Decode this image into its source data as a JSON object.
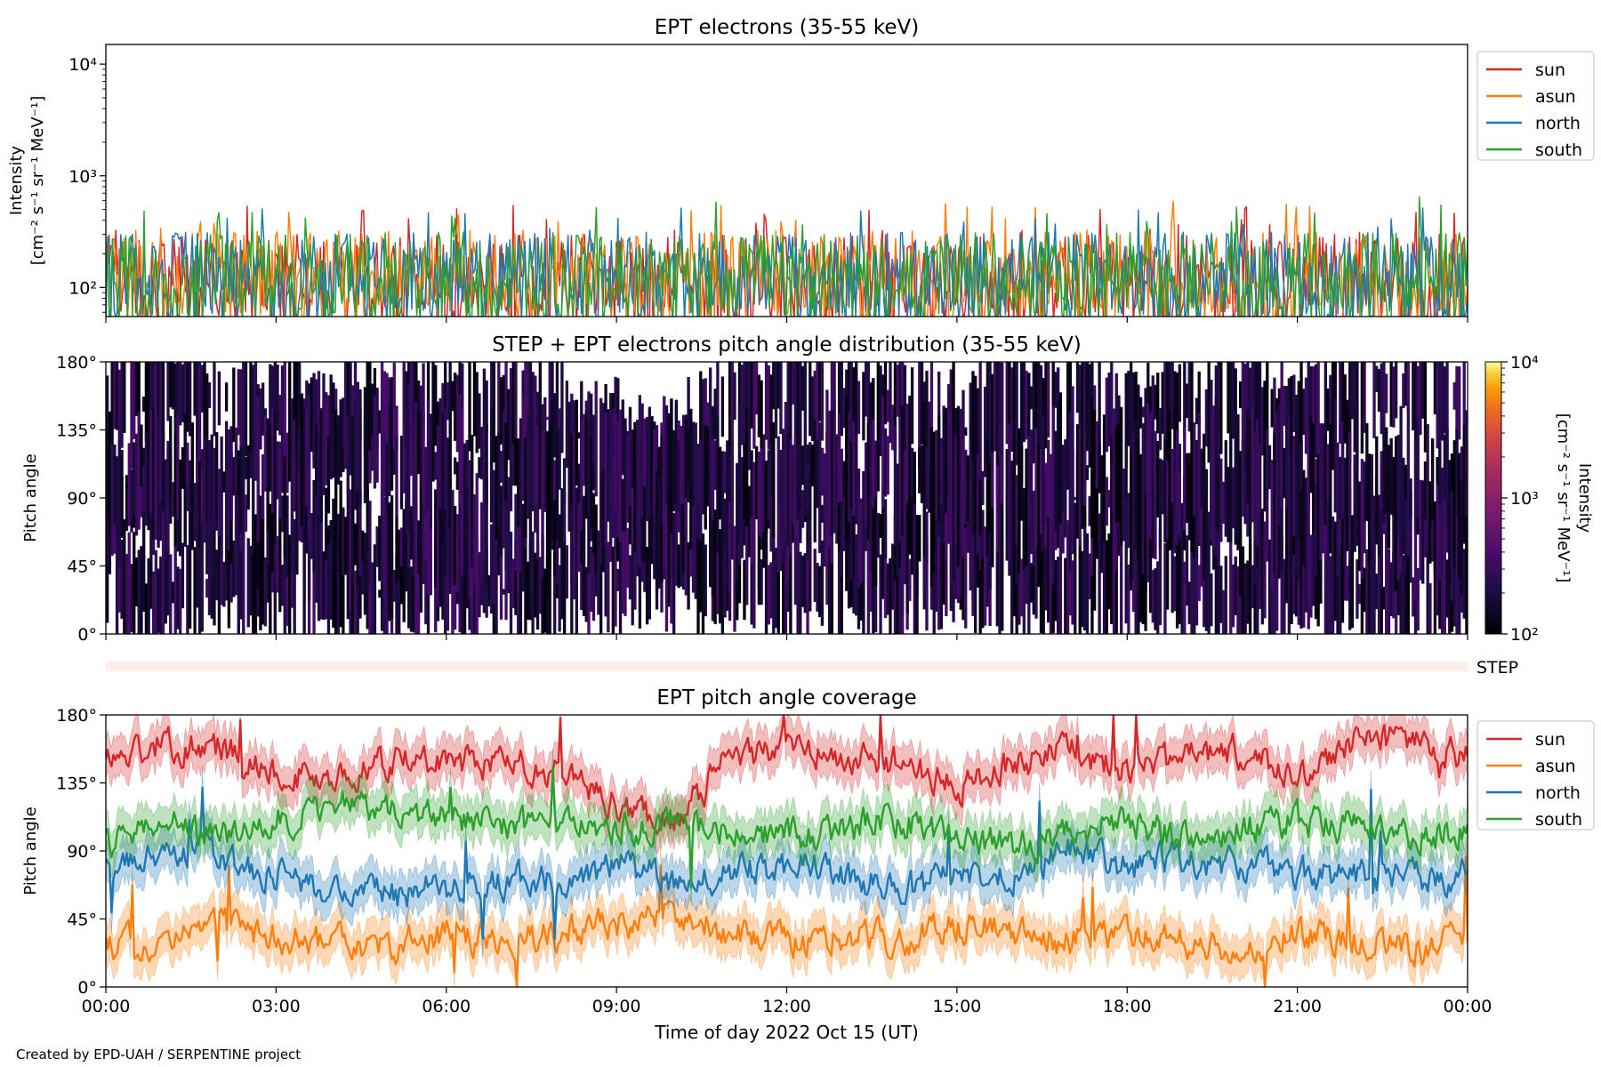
{
  "credit": "Created by EPD-UAH / SERPENTINE project",
  "colors": {
    "sun": "#d62728",
    "asun": "#ff7f0e",
    "north": "#1f77b4",
    "south": "#2ca02c",
    "step_band": "#fdeee8"
  },
  "chart_data": [
    {
      "type": "line",
      "title": "EPT electrons (35-55 keV)",
      "ylabel": [
        "Intensity",
        "[cm⁻² s⁻¹ sr⁻¹ MeV⁻¹]"
      ],
      "yscale": "log",
      "ylim": [
        55,
        15000
      ],
      "ytick_labels": [
        "10²",
        "10³",
        "10⁴"
      ],
      "ytick_values": [
        100,
        1000,
        10000
      ],
      "xlim_hours": [
        0,
        24
      ],
      "legend": {
        "placement": "outside-right-top",
        "entries": [
          "sun",
          "asun",
          "north",
          "south"
        ]
      },
      "series": [
        {
          "name": "sun",
          "typical": 110,
          "peak": 560
        },
        {
          "name": "asun",
          "typical": 120,
          "peak": 600
        },
        {
          "name": "north",
          "typical": 115,
          "peak": 520
        },
        {
          "name": "south",
          "typical": 115,
          "peak": 650
        }
      ]
    },
    {
      "type": "heatmap",
      "title": "STEP + EPT electrons pitch angle distribution (35-55 keV)",
      "ylabel": "Pitch angle",
      "ylim": [
        0,
        180
      ],
      "ytick_labels": [
        "0°",
        "45°",
        "90°",
        "135°",
        "180°"
      ],
      "ytick_values": [
        0,
        45,
        90,
        135,
        180
      ],
      "xlim_hours": [
        0,
        24
      ],
      "colorbar": {
        "label": [
          "Intensity",
          "[cm⁻² s⁻¹ sr⁻¹ MeV⁻¹]"
        ],
        "scale": "log",
        "range": [
          100,
          10000
        ],
        "tick_labels": [
          "10²",
          "10³",
          "10⁴"
        ],
        "tick_values": [
          100,
          1000,
          10000
        ],
        "colormap": "inferno"
      },
      "step_label": "STEP",
      "typical_intensity": 200
    },
    {
      "type": "line",
      "title": "EPT pitch angle coverage",
      "ylabel": "Pitch angle",
      "xlabel": "Time of day 2022 Oct 15 (UT)",
      "ylim": [
        0,
        180
      ],
      "ytick_labels": [
        "0°",
        "45°",
        "90°",
        "135°",
        "180°"
      ],
      "ytick_values": [
        0,
        45,
        90,
        135,
        180
      ],
      "xtick_labels": [
        "00:00",
        "03:00",
        "06:00",
        "09:00",
        "12:00",
        "15:00",
        "18:00",
        "21:00",
        "00:00"
      ],
      "xtick_values_hours": [
        0,
        3,
        6,
        9,
        12,
        15,
        18,
        21,
        24
      ],
      "xlim_hours": [
        0,
        24
      ],
      "legend": {
        "placement": "outside-right-top",
        "entries": [
          "sun",
          "asun",
          "north",
          "south"
        ]
      },
      "series": [
        {
          "name": "sun",
          "x_hours": [
            0,
            1,
            2,
            3,
            4,
            5,
            6,
            7,
            8,
            9,
            10,
            11,
            12,
            13,
            14,
            15,
            16,
            17,
            18,
            19,
            20,
            21,
            22,
            23,
            24
          ],
          "y": [
            150,
            160,
            158,
            145,
            135,
            150,
            148,
            150,
            140,
            120,
            110,
            150,
            160,
            150,
            150,
            130,
            150,
            155,
            145,
            150,
            155,
            140,
            160,
            165,
            150
          ]
        },
        {
          "name": "asun",
          "x_hours": [
            0,
            1,
            2,
            3,
            4,
            5,
            6,
            7,
            8,
            9,
            10,
            11,
            12,
            13,
            14,
            15,
            16,
            17,
            18,
            19,
            20,
            21,
            22,
            23,
            24
          ],
          "y": [
            30,
            25,
            40,
            35,
            30,
            25,
            35,
            30,
            35,
            40,
            50,
            35,
            30,
            35,
            30,
            40,
            35,
            30,
            35,
            30,
            25,
            35,
            30,
            25,
            30
          ]
        },
        {
          "name": "north",
          "x_hours": [
            0,
            1,
            2,
            3,
            4,
            5,
            6,
            7,
            8,
            9,
            10,
            11,
            12,
            13,
            14,
            15,
            16,
            17,
            18,
            19,
            20,
            21,
            22,
            23,
            24
          ],
          "y": [
            80,
            90,
            85,
            75,
            65,
            60,
            65,
            70,
            70,
            80,
            70,
            75,
            80,
            75,
            65,
            70,
            75,
            90,
            80,
            85,
            80,
            75,
            75,
            70,
            75
          ]
        },
        {
          "name": "south",
          "x_hours": [
            0,
            1,
            2,
            3,
            4,
            5,
            6,
            7,
            8,
            9,
            10,
            11,
            12,
            13,
            14,
            15,
            16,
            17,
            18,
            19,
            20,
            21,
            22,
            23,
            24
          ],
          "y": [
            95,
            110,
            100,
            110,
            120,
            115,
            110,
            110,
            105,
            105,
            110,
            100,
            100,
            105,
            110,
            100,
            90,
            105,
            110,
            100,
            105,
            110,
            105,
            100,
            105
          ]
        }
      ],
      "band_halfwidth_deg": 13
    }
  ]
}
